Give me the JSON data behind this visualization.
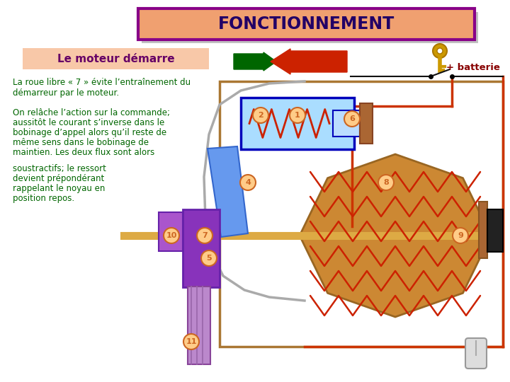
{
  "title": "FONCTIONNEMENT",
  "title_bg": "#F0A070",
  "title_border": "#880088",
  "title_text_color": "#220066",
  "subtitle": "Le moteur démarre",
  "subtitle_bg": "#F8C8A8",
  "subtitle_text_color": "#660066",
  "text1_line1": "La roue libre « 7 » évite l’entraînement du",
  "text1_line2": "démarreur par le moteur.",
  "text2_line1": "On relâche l’action sur la commande;",
  "text2_line2": "aussitôt le courant s’inverse dans le",
  "text2_line3": "bobinage d’appel alors qu’il reste de",
  "text2_line4": "même sens dans le bobinage de",
  "text2_line5": "maintien. Les deux flux sont alors",
  "text3_line1": "soustractifs; le ressort",
  "text3_line2": "devient prépondérant",
  "text3_line3": "rappelant le noyau en",
  "text3_line4": "position repos.",
  "text_color": "#006600",
  "batterie_text": "+ batterie",
  "batterie_color": "#880000",
  "bg_color": "#FFFFFF",
  "arrow_green": "#006600",
  "arrow_red": "#CC2200",
  "circuit_blue": "#0000BB",
  "circuit_red": "#CC3300",
  "solenoid_bg": "#AADDFF",
  "motor_bg": "#CC8833",
  "coil_color": "#CC2200",
  "purple_color": "#8833BB",
  "purple_light": "#AA55CC",
  "label_bg": "#FFCC88",
  "label_border": "#CC6622",
  "gray_outline": "#AAAAAA",
  "brown_connector": "#AA6633",
  "black_part": "#222222",
  "shaft_color": "#DDAA44",
  "key_color": "#CC9900",
  "wire_black": "#111111",
  "shadow_color": "#999999"
}
